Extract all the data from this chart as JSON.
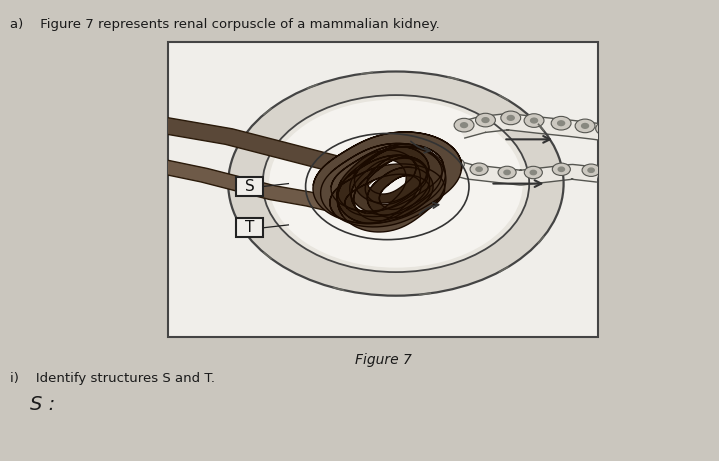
{
  "page_bg": "#cac6be",
  "box_bg": "#f0eeea",
  "title_text": "a)    Figure 7 represents renal corpuscle of a mammalian kidney.",
  "figure_label": "Figure 7",
  "question_text": "i)    Identify structures S and T.",
  "answer_text": "S :",
  "dark_brown": "#5a4838",
  "mid_brown": "#6e5a48",
  "capsule_fill": "#e8e5de",
  "capsule_space": "#d8d4cc",
  "white_fill": "#f5f3ef",
  "line_color": "#444444",
  "arrow_color": "#333333",
  "tubule_cell_fill": "#ccc8c0",
  "tubule_cell_edge": "#555550"
}
